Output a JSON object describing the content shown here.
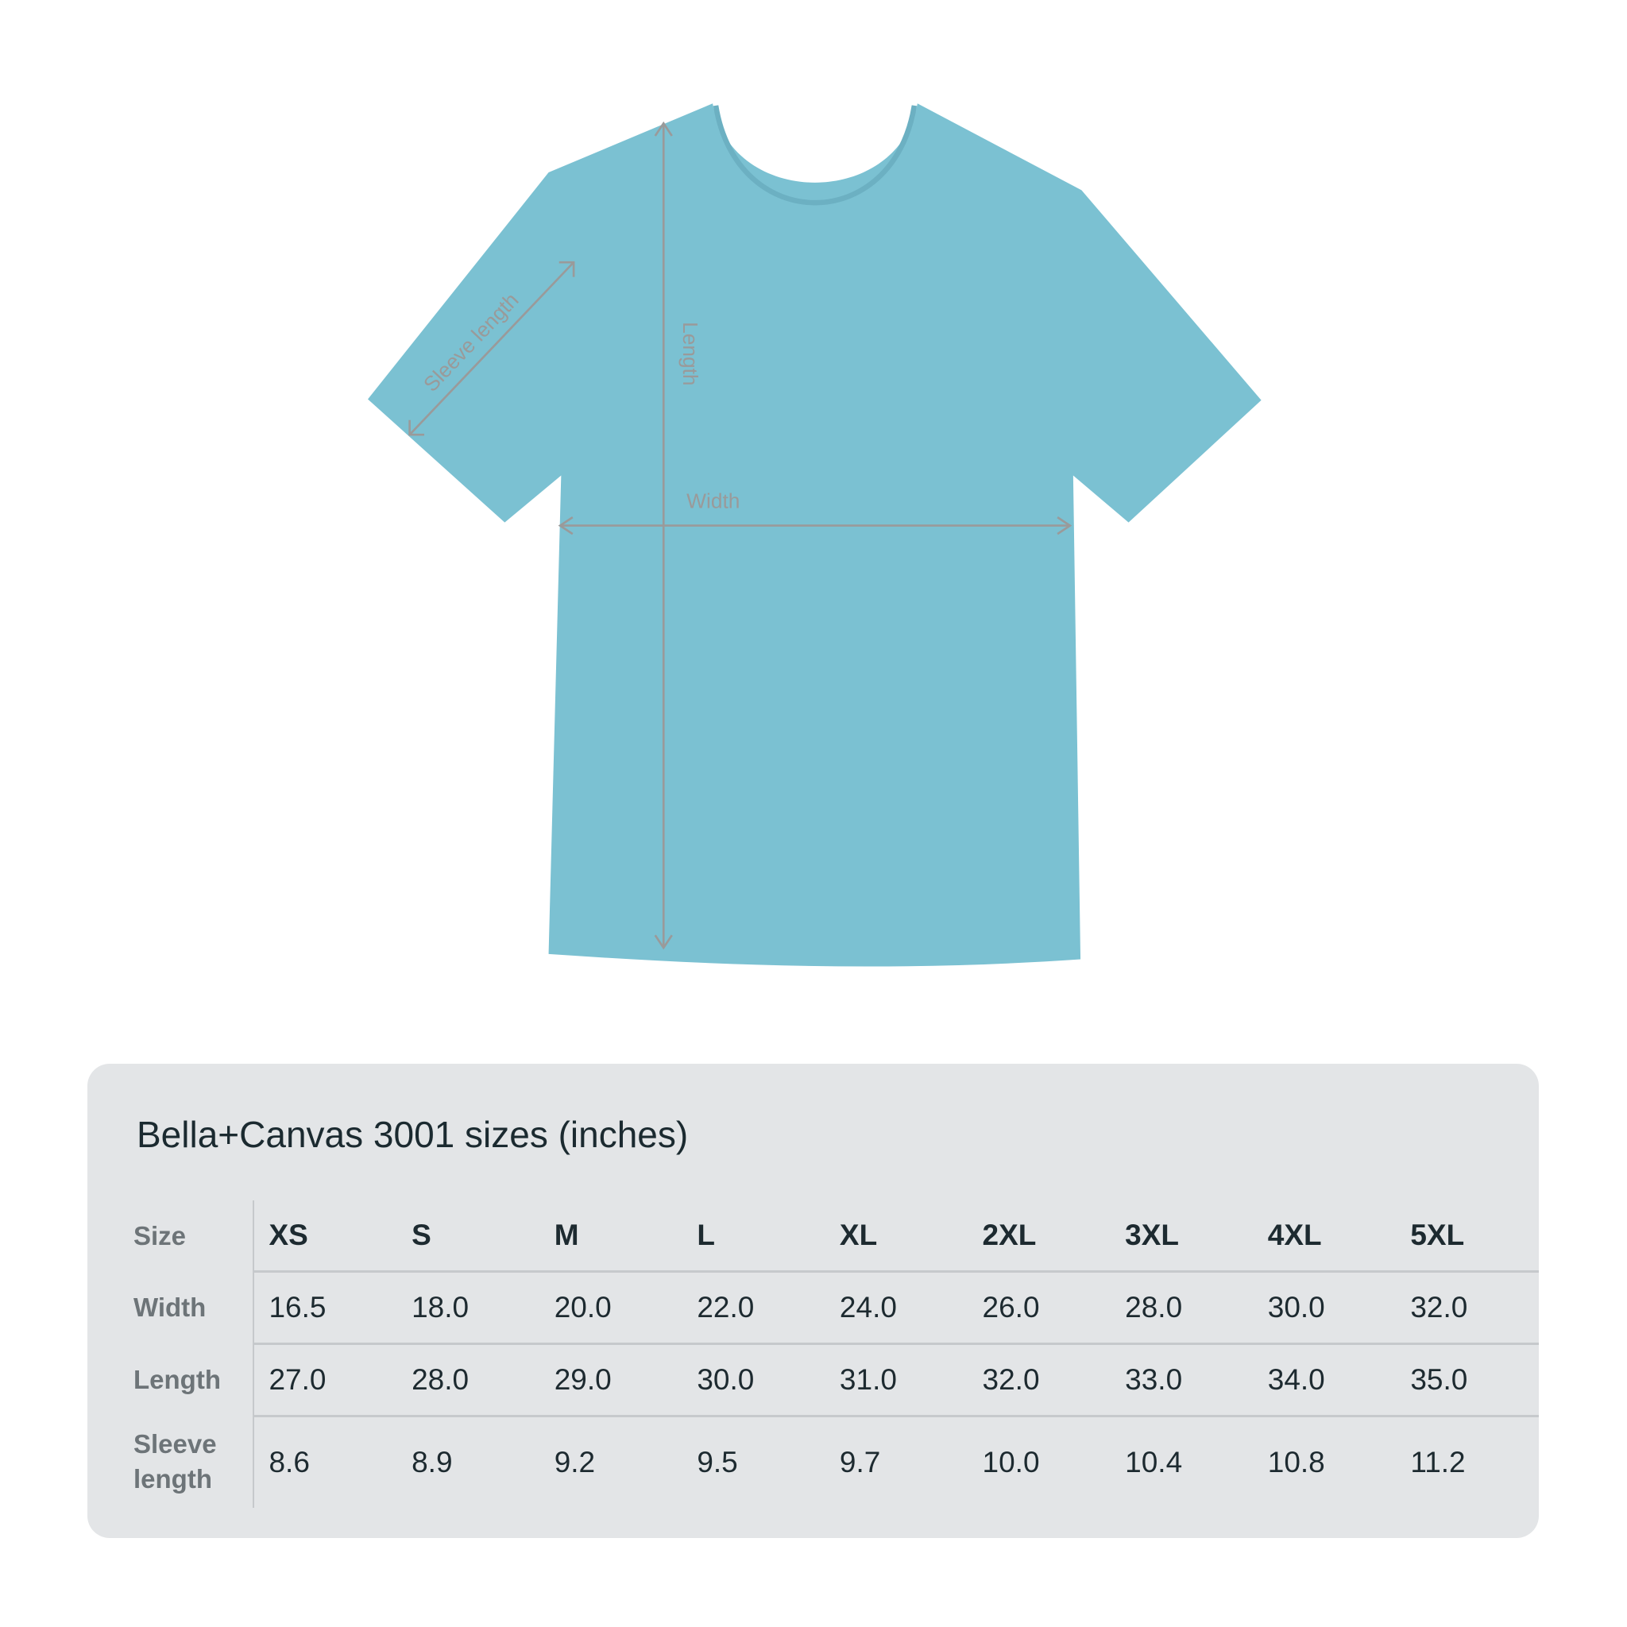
{
  "diagram": {
    "shirt_color": "#7bc1d2",
    "measure_color": "#9a9a9a",
    "labels": {
      "sleeve": "Sleeve length",
      "length": "Length",
      "width": "Width"
    }
  },
  "table": {
    "title": "Bella+Canvas 3001 sizes (inches)",
    "row_labels": [
      "Size",
      "Width",
      "Length",
      "Sleeve length"
    ],
    "sizes": [
      "XS",
      "S",
      "M",
      "L",
      "XL",
      "2XL",
      "3XL",
      "4XL",
      "5XL"
    ],
    "width": [
      "16.5",
      "18.0",
      "20.0",
      "22.0",
      "24.0",
      "26.0",
      "28.0",
      "30.0",
      "32.0"
    ],
    "length": [
      "27.0",
      "28.0",
      "29.0",
      "30.0",
      "31.0",
      "32.0",
      "33.0",
      "34.0",
      "35.0"
    ],
    "sleeve_length": [
      "8.6",
      "8.9",
      "9.2",
      "9.5",
      "9.7",
      "10.0",
      "10.4",
      "10.8",
      "11.2"
    ]
  }
}
